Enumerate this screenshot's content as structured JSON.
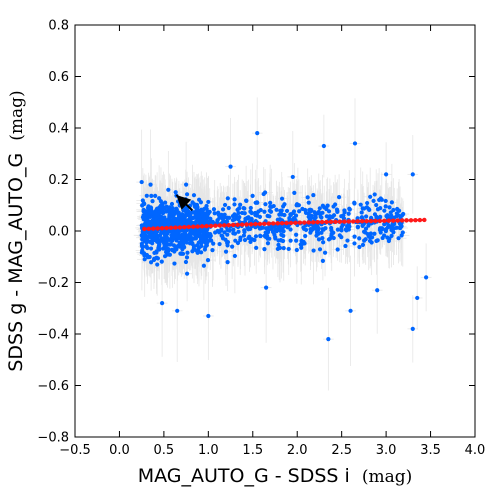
{
  "chart_data": {
    "type": "scatter",
    "title": "",
    "xlabel": "MAG_AUTO_G  -  SDSS i",
    "xunit": "(mag)",
    "ylabel": "SDSS g  -  MAG_AUTO_G",
    "yunit": "(mag)",
    "xlim": [
      -0.5,
      4.0
    ],
    "ylim": [
      -0.8,
      0.8
    ],
    "xticks": [
      -0.5,
      0.0,
      0.5,
      1.0,
      1.5,
      2.0,
      2.5,
      3.0,
      3.5,
      4.0
    ],
    "xtick_labels": [
      "−0.5",
      "0.0",
      "0.5",
      "1.0",
      "1.5",
      "2.0",
      "2.5",
      "3.0",
      "3.5",
      "4.0"
    ],
    "yticks": [
      -0.8,
      -0.6,
      -0.4,
      -0.2,
      0.0,
      0.2,
      0.4,
      0.6,
      0.8
    ],
    "ytick_labels": [
      "−0.8",
      "−0.6",
      "−0.4",
      "−0.2",
      "0.0",
      "0.2",
      "0.4",
      "0.6",
      "0.8"
    ],
    "grid": false,
    "colors": {
      "points": "#0066ff",
      "errorbars": "#e6e6e6",
      "fit": "#ff1a1a",
      "arrow": "#000000"
    },
    "outliers": [
      {
        "x": 0.25,
        "y": 0.19
      },
      {
        "x": 0.35,
        "y": 0.18
      },
      {
        "x": 0.55,
        "y": 0.16
      },
      {
        "x": 0.75,
        "y": 0.18
      },
      {
        "x": 1.25,
        "y": 0.25
      },
      {
        "x": 1.55,
        "y": 0.38
      },
      {
        "x": 1.95,
        "y": 0.21
      },
      {
        "x": 2.3,
        "y": 0.33
      },
      {
        "x": 2.65,
        "y": 0.34
      },
      {
        "x": 3.0,
        "y": 0.22
      },
      {
        "x": 3.3,
        "y": 0.22
      },
      {
        "x": 0.48,
        "y": -0.28
      },
      {
        "x": 0.65,
        "y": -0.31
      },
      {
        "x": 1.0,
        "y": -0.33
      },
      {
        "x": 1.65,
        "y": -0.22
      },
      {
        "x": 2.35,
        "y": -0.42
      },
      {
        "x": 2.6,
        "y": -0.31
      },
      {
        "x": 2.9,
        "y": -0.23
      },
      {
        "x": 3.3,
        "y": -0.38
      },
      {
        "x": 3.35,
        "y": -0.26
      },
      {
        "x": 3.45,
        "y": -0.18
      }
    ],
    "fit_line": {
      "x": [
        0.28,
        0.5,
        0.8,
        1.1,
        1.4,
        1.7,
        2.0,
        2.3,
        2.6,
        2.9,
        3.2,
        3.45
      ],
      "y": [
        0.008,
        0.011,
        0.016,
        0.021,
        0.025,
        0.029,
        0.032,
        0.035,
        0.037,
        0.039,
        0.041,
        0.043
      ]
    },
    "arrow": {
      "x_from": 0.82,
      "y_from": 0.08,
      "x_to": 0.64,
      "y_to": 0.14
    }
  }
}
